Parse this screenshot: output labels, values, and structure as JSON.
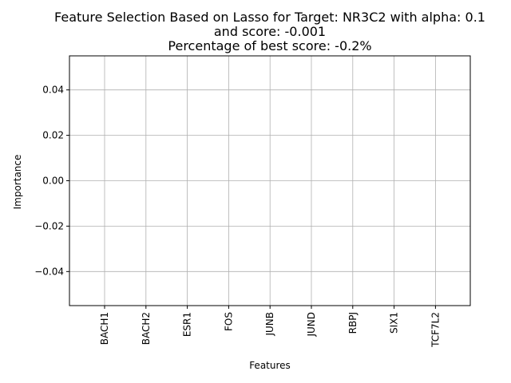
{
  "chart_data": {
    "type": "bar",
    "title_lines": [
      "Feature Selection Based on Lasso for Target: NR3C2 with alpha: 0.1",
      "and score: -0.001",
      "Percentage of best score: -0.2%"
    ],
    "xlabel": "Features",
    "ylabel": "Importance",
    "categories": [
      "BACH1",
      "BACH2",
      "ESR1",
      "FOS",
      "JUNB",
      "JUND",
      "RBPJ",
      "SIX1",
      "TCF7L2"
    ],
    "values": [
      0,
      0,
      0,
      0,
      0,
      0,
      0,
      0,
      0
    ],
    "ylim": [
      -0.055,
      0.055
    ],
    "yticks": [
      -0.04,
      -0.02,
      0.0,
      0.02,
      0.04
    ],
    "ytick_labels": [
      "−0.04",
      "−0.02",
      "0.00",
      "0.02",
      "0.04"
    ],
    "grid": true,
    "bar_color": "#1f77b4"
  }
}
